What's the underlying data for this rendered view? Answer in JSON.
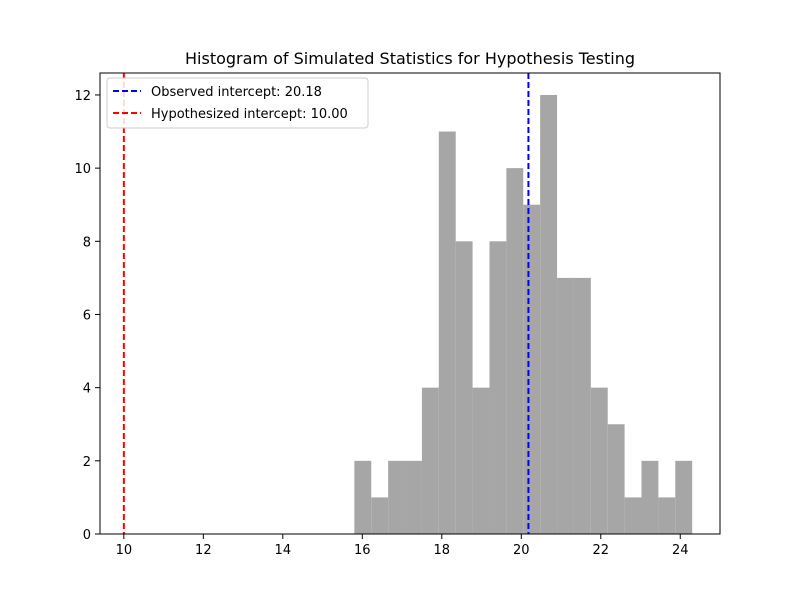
{
  "chart_data": {
    "type": "bar",
    "subtype": "histogram",
    "title": "Histogram of Simulated Statistics for Hypothesis Testing",
    "xlabel": "",
    "ylabel": "",
    "xlim": [
      9.4,
      25.0
    ],
    "ylim": [
      0,
      12.6
    ],
    "xticks": [
      10,
      12,
      14,
      16,
      18,
      20,
      22,
      24
    ],
    "yticks": [
      0,
      2,
      4,
      6,
      8,
      10,
      12
    ],
    "bar_color": "#a6a6a6",
    "bin_edges": [
      15.8,
      16.225,
      16.65,
      17.075,
      17.5,
      17.925,
      18.35,
      18.775,
      19.2,
      19.625,
      20.05,
      20.475,
      20.9,
      21.325,
      21.75,
      22.175,
      22.6,
      23.025,
      23.45,
      23.875,
      24.3
    ],
    "counts": [
      2,
      1,
      2,
      2,
      4,
      11,
      8,
      4,
      8,
      10,
      9,
      12,
      7,
      7,
      4,
      3,
      1,
      2,
      1,
      2
    ],
    "lines": [
      {
        "label": "Observed intercept: 20.18",
        "x": 20.18,
        "color": "#0000ff",
        "style": "dashed"
      },
      {
        "label": "Hypothesized intercept: 10.00",
        "x": 10.0,
        "color": "#ff0000",
        "style": "dashed"
      }
    ],
    "legend_position": "top-left",
    "grid": false
  }
}
